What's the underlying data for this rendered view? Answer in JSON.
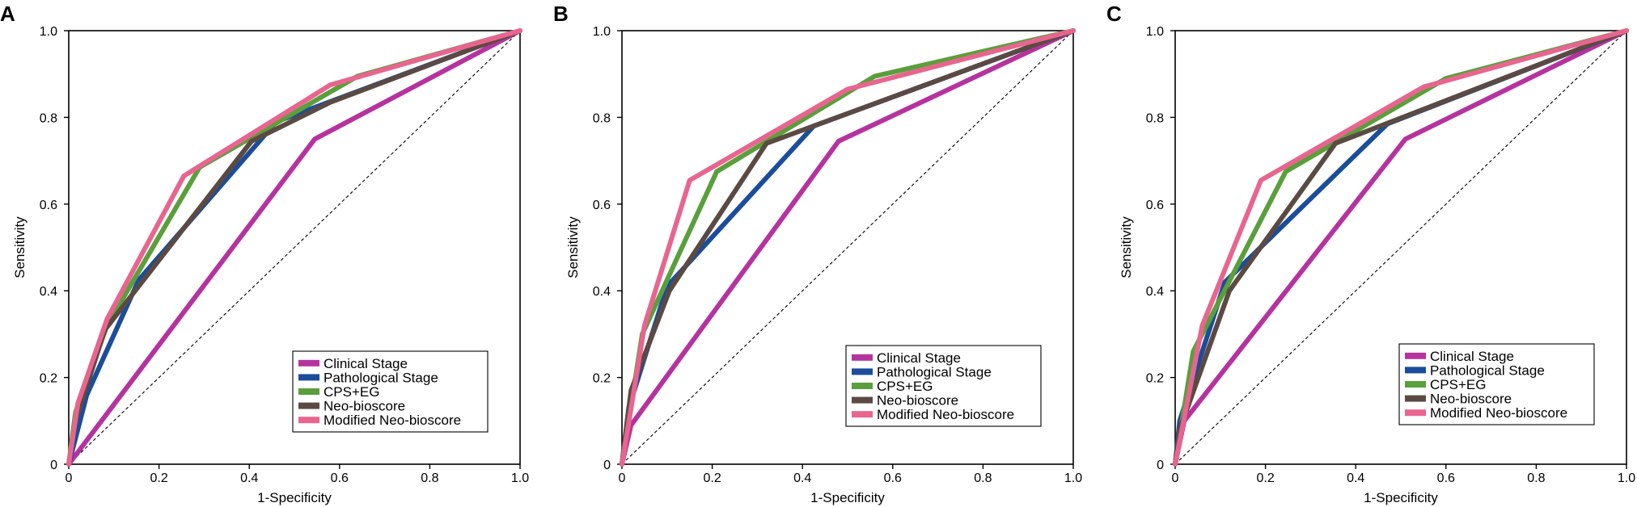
{
  "chart_data": [
    {
      "type": "line",
      "panel_label": "A",
      "xlabel": "1-Specificity",
      "ylabel": "Sensitivity",
      "xlim": [
        0,
        1
      ],
      "ylim": [
        0,
        1
      ],
      "xticks": [
        "0",
        "0.2",
        "0.4",
        "0.6",
        "0.8",
        "1.0"
      ],
      "yticks": [
        "0",
        "0.2",
        "0.4",
        "0.6",
        "0.8",
        "1.0"
      ],
      "legend_position": "bottom-right",
      "reference_line": {
        "x": [
          0,
          1
        ],
        "y": [
          0,
          1
        ],
        "style": "dashed"
      },
      "series": [
        {
          "name": "Clinical Stage",
          "color": "#b5339f",
          "x": [
            0,
            0.545,
            1
          ],
          "y": [
            0,
            0.75,
            1
          ]
        },
        {
          "name": "Pathological Stage",
          "color": "#1b4d9b",
          "x": [
            0,
            0.04,
            0.155,
            0.46,
            1
          ],
          "y": [
            0,
            0.16,
            0.425,
            0.79,
            1
          ]
        },
        {
          "name": "CPS+EG",
          "color": "#5a9f3b",
          "x": [
            0,
            0.015,
            0.085,
            0.29,
            0.64,
            1
          ],
          "y": [
            0,
            0.12,
            0.32,
            0.685,
            0.895,
            1
          ]
        },
        {
          "name": "Neo-bioscore",
          "color": "#5b4a43",
          "x": [
            0,
            0.015,
            0.08,
            0.405,
            0.58,
            1
          ],
          "y": [
            0,
            0.1,
            0.31,
            0.745,
            0.835,
            1
          ]
        },
        {
          "name": "Modified Neo-bioscore",
          "color": "#e8658f",
          "x": [
            0,
            0.02,
            0.085,
            0.255,
            0.58,
            1
          ],
          "y": [
            0,
            0.14,
            0.335,
            0.665,
            0.875,
            1
          ]
        }
      ]
    },
    {
      "type": "line",
      "panel_label": "B",
      "xlabel": "1-Specificity",
      "ylabel": "Sensitivity",
      "xlim": [
        0,
        1
      ],
      "ylim": [
        0,
        1
      ],
      "xticks": [
        "0",
        "0.2",
        "0.4",
        "0.6",
        "0.8",
        "1.0"
      ],
      "yticks": [
        "0",
        "0.2",
        "0.4",
        "0.6",
        "0.8",
        "1.0"
      ],
      "legend_position": "bottom-right",
      "reference_line": {
        "x": [
          0,
          1
        ],
        "y": [
          0,
          1
        ],
        "style": "dashed"
      },
      "series": [
        {
          "name": "Clinical Stage",
          "color": "#b5339f",
          "x": [
            0,
            0.02,
            0.48,
            1
          ],
          "y": [
            0,
            0.09,
            0.745,
            1
          ]
        },
        {
          "name": "Pathological Stage",
          "color": "#1b4d9b",
          "x": [
            0,
            0.015,
            0.1,
            0.425,
            1
          ],
          "y": [
            0,
            0.13,
            0.41,
            0.78,
            1
          ]
        },
        {
          "name": "CPS+EG",
          "color": "#5a9f3b",
          "x": [
            0,
            0.045,
            0.21,
            0.56,
            1
          ],
          "y": [
            0,
            0.3,
            0.675,
            0.895,
            1
          ]
        },
        {
          "name": "Neo-bioscore",
          "color": "#5b4a43",
          "x": [
            0,
            0.02,
            0.105,
            0.32,
            1
          ],
          "y": [
            0,
            0.17,
            0.4,
            0.74,
            1
          ]
        },
        {
          "name": "Modified Neo-bioscore",
          "color": "#e8658f",
          "x": [
            0,
            0.05,
            0.15,
            0.5,
            1
          ],
          "y": [
            0,
            0.32,
            0.655,
            0.865,
            1
          ]
        }
      ]
    },
    {
      "type": "line",
      "panel_label": "C",
      "xlabel": "1-Specificity",
      "ylabel": "Sensitivity",
      "xlim": [
        0,
        1
      ],
      "ylim": [
        0,
        1
      ],
      "xticks": [
        "0",
        "0.2",
        "0.4",
        "0.6",
        "0.8",
        "1.0"
      ],
      "yticks": [
        "0",
        "0.2",
        "0.4",
        "0.6",
        "0.8",
        "1.0"
      ],
      "legend_position": "bottom-right",
      "reference_line": {
        "x": [
          0,
          1
        ],
        "y": [
          0,
          1
        ],
        "style": "dashed"
      },
      "series": [
        {
          "name": "Clinical Stage",
          "color": "#b5339f",
          "x": [
            0,
            0.02,
            0.51,
            1
          ],
          "y": [
            0,
            0.1,
            0.75,
            1
          ]
        },
        {
          "name": "Pathological Stage",
          "color": "#1b4d9b",
          "x": [
            0,
            0.01,
            0.11,
            0.47,
            1
          ],
          "y": [
            0,
            0.1,
            0.42,
            0.785,
            1
          ]
        },
        {
          "name": "CPS+EG",
          "color": "#5a9f3b",
          "x": [
            0,
            0.04,
            0.245,
            0.6,
            1
          ],
          "y": [
            0,
            0.26,
            0.675,
            0.89,
            1
          ]
        },
        {
          "name": "Neo-bioscore",
          "color": "#5b4a43",
          "x": [
            0,
            0.01,
            0.12,
            0.355,
            1
          ],
          "y": [
            0,
            0.08,
            0.4,
            0.74,
            1
          ]
        },
        {
          "name": "Modified Neo-bioscore",
          "color": "#e8658f",
          "x": [
            0,
            0.06,
            0.19,
            0.55,
            1
          ],
          "y": [
            0,
            0.32,
            0.655,
            0.87,
            1
          ]
        }
      ]
    }
  ]
}
